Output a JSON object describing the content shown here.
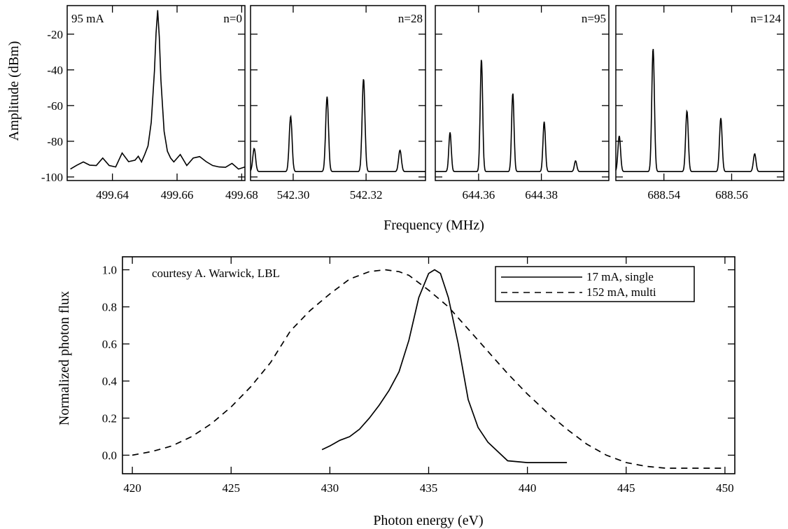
{
  "chart_data": [
    {
      "type": "line",
      "annotation": "95 mA",
      "label": "n=0",
      "xlim": [
        499.626,
        499.681
      ],
      "xticks": [
        "499.64",
        "499.66",
        "499.68"
      ],
      "xtick_values": [
        499.64,
        499.66,
        499.68
      ],
      "ylim": [
        -102,
        -4
      ],
      "yticks": [
        "-20",
        "-40",
        "-60",
        "-80",
        "-100"
      ],
      "ytick_values": [
        -20,
        -40,
        -60,
        -80,
        -100
      ],
      "ylabel": "Amplitude (dBm)",
      "series": [
        {
          "x": [
            499.627,
            499.629,
            499.631,
            499.633,
            499.635,
            499.637,
            499.639,
            499.641,
            499.643,
            499.645,
            499.647,
            499.648,
            499.649,
            499.65,
            499.651,
            499.652,
            499.653,
            499.6535,
            499.654,
            499.6545,
            499.655,
            499.656,
            499.657,
            499.658,
            499.659,
            499.661,
            499.663,
            499.665,
            499.667,
            499.669,
            499.671,
            499.673,
            499.675,
            499.677,
            499.679,
            499.681
          ],
          "y": [
            -95,
            -94,
            -91,
            -94,
            -93,
            -90,
            -93,
            -95,
            -86,
            -92,
            -90,
            -89,
            -91,
            -88,
            -82,
            -70,
            -40,
            -20,
            -6,
            -22,
            -45,
            -75,
            -85,
            -90,
            -91,
            -88,
            -93,
            -90,
            -88,
            -92,
            -93,
            -95,
            -94,
            -93,
            -95,
            -95
          ]
        }
      ]
    },
    {
      "type": "line",
      "label": "n=28",
      "xlim": [
        542.2883,
        542.3363
      ],
      "xticks": [
        "542.30",
        "542.32"
      ],
      "xtick_values": [
        542.3,
        542.32
      ],
      "ylim": [
        -102,
        -4
      ],
      "baseline": -97,
      "peaks": [
        {
          "x": 542.2893,
          "y": -84
        },
        {
          "x": 542.2993,
          "y": -66
        },
        {
          "x": 542.3093,
          "y": -55
        },
        {
          "x": 542.3193,
          "y": -45
        },
        {
          "x": 542.3293,
          "y": -85
        }
      ]
    },
    {
      "type": "line",
      "label": "n=95",
      "xlim": [
        644.3462,
        644.4015
      ],
      "xticks": [
        "644.36",
        "644.38"
      ],
      "xtick_values": [
        644.36,
        644.38
      ],
      "ylim": [
        -102,
        -4
      ],
      "baseline": -97,
      "peaks": [
        {
          "x": 644.3509,
          "y": -75
        },
        {
          "x": 644.3609,
          "y": -34
        },
        {
          "x": 644.3709,
          "y": -53
        },
        {
          "x": 644.3809,
          "y": -69
        },
        {
          "x": 644.3909,
          "y": -91
        }
      ]
    },
    {
      "type": "line",
      "label": "n=124",
      "xlim": [
        688.5258,
        688.5754
      ],
      "xticks": [
        "688.54",
        "688.56"
      ],
      "xtick_values": [
        688.54,
        688.56
      ],
      "ylim": [
        -102,
        -4
      ],
      "baseline": -97,
      "peaks": [
        {
          "x": 688.5268,
          "y": -77
        },
        {
          "x": 688.5368,
          "y": -28
        },
        {
          "x": 688.5468,
          "y": -63
        },
        {
          "x": 688.5568,
          "y": -67
        },
        {
          "x": 688.5668,
          "y": -87
        }
      ]
    },
    {
      "type": "line",
      "xlabel": "Photon energy (eV)",
      "ylabel": "Normalized photon flux",
      "annotation": "courtesy A. Warwick, LBL",
      "xlim": [
        419.5,
        450.5
      ],
      "xticks": [
        "420",
        "425",
        "430",
        "435",
        "440",
        "445",
        "450"
      ],
      "xtick_values": [
        420,
        425,
        430,
        435,
        440,
        445,
        450
      ],
      "ylim": [
        -0.1,
        1.07
      ],
      "yticks": [
        "0.0",
        "0.2",
        "0.4",
        "0.6",
        "0.8",
        "1.0"
      ],
      "ytick_values": [
        0.0,
        0.2,
        0.4,
        0.6,
        0.8,
        1.0
      ],
      "legend_position": "top-right",
      "series": [
        {
          "name": "17 mA, single",
          "style": "solid",
          "x": [
            429.6,
            430,
            430.5,
            431,
            431.5,
            432,
            432.5,
            433,
            433.5,
            434,
            434.5,
            435,
            435.3,
            435.6,
            436,
            436.5,
            437,
            437.5,
            438,
            438.5,
            439,
            440,
            441,
            442
          ],
          "y": [
            0.03,
            0.05,
            0.08,
            0.1,
            0.14,
            0.2,
            0.27,
            0.35,
            0.45,
            0.62,
            0.85,
            0.98,
            1.0,
            0.98,
            0.85,
            0.6,
            0.3,
            0.15,
            0.07,
            0.02,
            -0.03,
            -0.04,
            -0.04,
            -0.04
          ]
        },
        {
          "name": "152 mA, multi",
          "style": "dashed",
          "x": [
            420,
            421,
            422,
            423,
            424,
            425,
            426,
            427,
            428,
            429,
            430,
            431,
            432,
            432.8,
            433.5,
            434,
            435,
            436,
            437,
            438,
            439,
            440,
            441,
            442,
            443,
            444,
            445,
            446,
            447,
            448,
            449,
            450
          ],
          "y": [
            0.0,
            0.02,
            0.05,
            0.1,
            0.17,
            0.26,
            0.37,
            0.5,
            0.67,
            0.78,
            0.87,
            0.95,
            0.99,
            1.0,
            0.99,
            0.97,
            0.89,
            0.8,
            0.68,
            0.56,
            0.44,
            0.33,
            0.23,
            0.14,
            0.06,
            0.0,
            -0.04,
            -0.06,
            -0.07,
            -0.07,
            -0.07,
            -0.07
          ]
        }
      ]
    }
  ],
  "shared_xlabel": "Frequency (MHz)"
}
